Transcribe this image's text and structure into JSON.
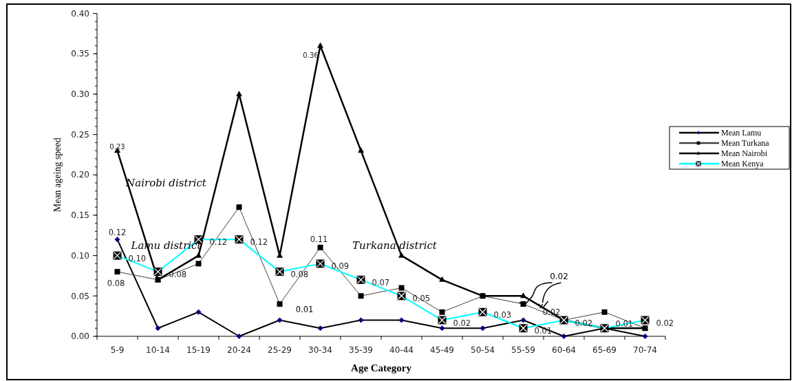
{
  "chart_data": {
    "type": "line",
    "xlabel": "Age Category",
    "ylabel": "Mean ageing speed",
    "categories": [
      "5-9",
      "10-14",
      "15-19",
      "20-24",
      "25-29",
      "30-34",
      "35-39",
      "40-44",
      "45-49",
      "50-54",
      "55-59",
      "60-64",
      "65-69",
      "70-74"
    ],
    "ylim": [
      0,
      0.4
    ],
    "yticks": [
      "0.00",
      "0.05",
      "0.10",
      "0.15",
      "0.20",
      "0.25",
      "0.30",
      "0.35",
      "0.40"
    ],
    "legend": "right",
    "grid": false,
    "series": [
      {
        "name": "Mean Lamu",
        "color": "#000000",
        "marker": "diamond",
        "values": [
          0.12,
          0.01,
          0.03,
          0,
          0.02,
          0.01,
          0.02,
          0.02,
          0.01,
          0.01,
          0.02,
          0,
          0.01,
          0
        ],
        "value_labels": [
          "0.12",
          null,
          null,
          null,
          null,
          null,
          null,
          null,
          null,
          null,
          null,
          null,
          null,
          null
        ]
      },
      {
        "name": "Mean Turkana",
        "color": "#404040",
        "marker": "square",
        "values": [
          0.08,
          0.07,
          0.09,
          0.16,
          0.04,
          0.11,
          0.05,
          0.06,
          0.03,
          0.05,
          0.04,
          0.02,
          0.03,
          0.01
        ],
        "value_labels": [
          "0.08",
          null,
          null,
          null,
          null,
          "0.11",
          null,
          null,
          null,
          null,
          null,
          "0.02",
          null,
          null
        ]
      },
      {
        "name": "Mean Nairobi",
        "color": "#000000",
        "marker": "triangle",
        "values": [
          0.23,
          0.07,
          0.1,
          0.3,
          0.1,
          0.36,
          0.23,
          0.1,
          0.07,
          0.05,
          0.05,
          0.02,
          0.01,
          0.01
        ],
        "value_labels": [
          "0.23",
          null,
          null,
          null,
          null,
          "0.36",
          null,
          null,
          null,
          null,
          null,
          null,
          null,
          null
        ]
      },
      {
        "name": "Mean Kenya",
        "color": "#00ffff",
        "marker": "square",
        "values": [
          0.1,
          0.08,
          0.12,
          0.12,
          0.08,
          0.09,
          0.07,
          0.05,
          0.02,
          0.03,
          0.01,
          0.02,
          0.01,
          0.02
        ],
        "value_labels": [
          "0.10",
          "0.08",
          "0.12",
          "0.12",
          "0.08",
          "0.09",
          "0.07",
          "0.05",
          "0.02",
          "0.03",
          "0.01",
          "0.02",
          "0.01",
          "0.02"
        ]
      }
    ],
    "annotations": [
      "Nairobi district",
      "Lamu district",
      "Turkana district",
      {
        "text": "0.01",
        "x": "25-29",
        "y": 0.04
      },
      {
        "text": "0.02",
        "x": "55-59",
        "y": 0.04
      }
    ]
  }
}
